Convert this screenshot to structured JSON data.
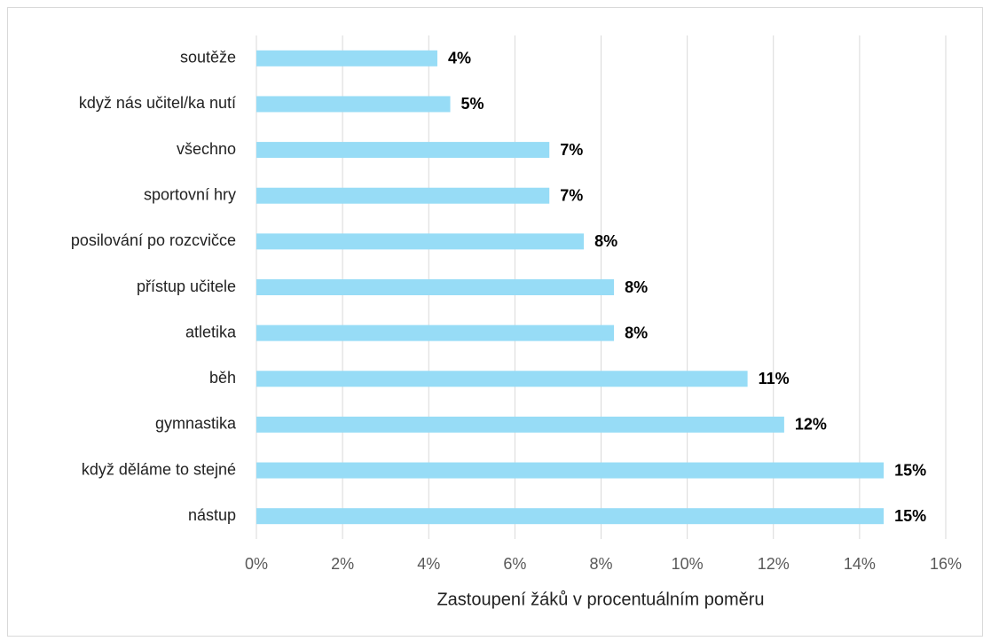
{
  "chart_data": {
    "type": "barh",
    "x_label": "Zastoupení žáků v procentuálním poměru",
    "categories": [
      "soutěže",
      "když nás učitel/ka nutí",
      "všechno",
      "sportovní hry",
      "posilování po rozcvičce",
      "přístup učitele",
      "atletika",
      "běh",
      "gymnastika",
      "když děláme to stejné",
      "nástup"
    ],
    "values": [
      4.2,
      4.5,
      6.8,
      6.8,
      7.6,
      8.3,
      8.3,
      11.4,
      12.25,
      14.56,
      14.56
    ],
    "value_labels": [
      "4%",
      "5%",
      "7%",
      "7%",
      "8%",
      "8%",
      "8%",
      "11%",
      "12%",
      "15%",
      "15%"
    ],
    "color": "#97dcf6",
    "xlim": [
      0,
      16
    ],
    "xticks": [
      {
        "value": 0,
        "label": "0%"
      },
      {
        "value": 2,
        "label": "2%"
      },
      {
        "value": 4,
        "label": "4%"
      },
      {
        "value": 6,
        "label": "6%"
      },
      {
        "value": 8,
        "label": "8%"
      },
      {
        "value": 10,
        "label": "10%"
      },
      {
        "value": 12,
        "label": "12%"
      },
      {
        "value": 14,
        "label": "14%"
      },
      {
        "value": 16,
        "label": "16%"
      }
    ],
    "grid": true
  }
}
